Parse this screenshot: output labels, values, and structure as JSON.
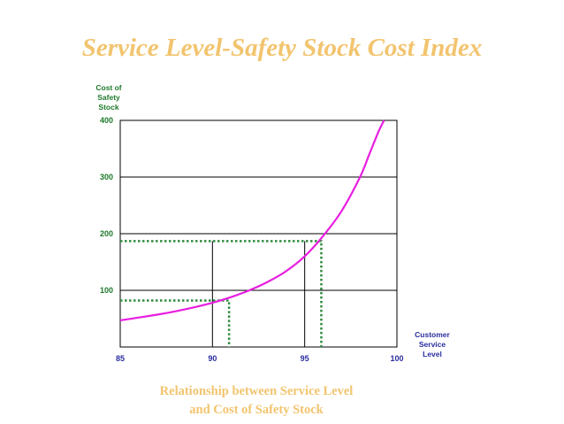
{
  "chart_data": {
    "type": "line",
    "title": "Service Level-Safety Stock Cost Index",
    "caption": [
      "Relationship between Service Level",
      "and Cost of Safety Stock"
    ],
    "ylabel": [
      "Cost of",
      "Safety",
      "Stock"
    ],
    "xlabel": [
      "Customer",
      "Service",
      "Level"
    ],
    "xlim": [
      85,
      100
    ],
    "ylim": [
      0,
      400
    ],
    "x_ticks": [
      "85",
      "90",
      "95",
      "100"
    ],
    "y_ticks": [
      "100",
      "200",
      "300",
      "400"
    ],
    "grid": "horizontal",
    "series": [
      {
        "color": "#e81ee0",
        "x": [
          85,
          86,
          87,
          88,
          89,
          90,
          91,
          92,
          93,
          94,
          95,
          96,
          97,
          98,
          98.5,
          99,
          99.3
        ],
        "y": [
          47,
          52,
          57,
          63,
          70,
          78,
          88,
          100,
          115,
          134,
          160,
          196,
          240,
          300,
          340,
          380,
          400
        ]
      }
    ],
    "reference_lines": [
      {
        "type": "dotted",
        "color": "#2e8b3e",
        "x": 90.9,
        "y": 82
      },
      {
        "type": "dotted",
        "color": "#2e8b3e",
        "x": 95.9,
        "y": 187
      }
    ],
    "vertical_markers": [
      90,
      95
    ]
  }
}
